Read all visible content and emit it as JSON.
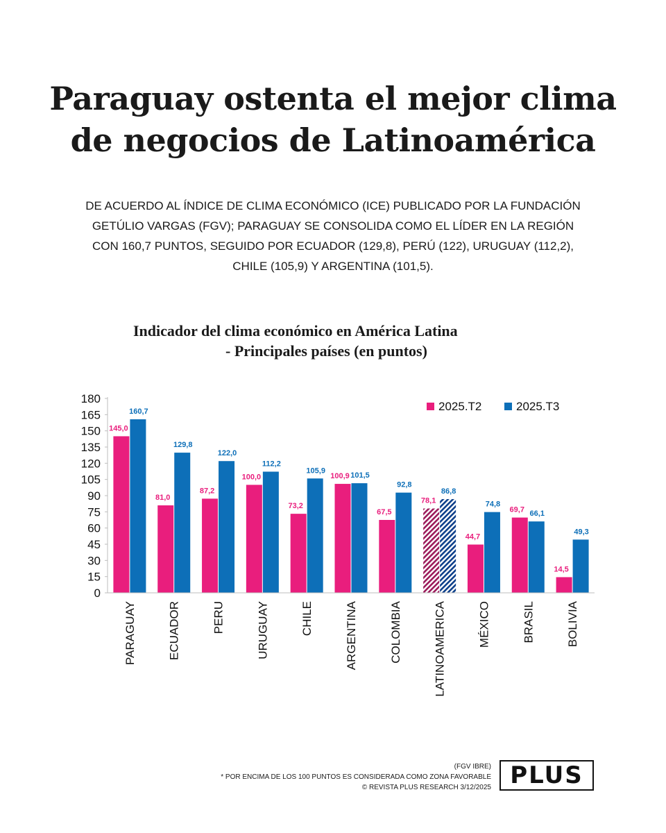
{
  "headline": {
    "line1": "Paraguay ostenta el mejor clima",
    "line2": "de negocios de Latinoamérica"
  },
  "intro": "DE ACUERDO AL ÍNDICE DE CLIMA ECONÓMICO (ICE) PUBLICADO POR LA FUNDACIÓN GETÚLIO VARGAS (FGV); PARAGUAY SE CONSOLIDA COMO EL LÍDER EN LA REGIÓN CON 160,7 PUNTOS, SEGUIDO POR ECUADOR (129,8), PERÚ (122), URUGUAY (112,2), CHILE (105,9) Y ARGENTINA (101,5).",
  "chart_data": {
    "type": "bar",
    "title_line1": "Indicador del clima económico  en América Latina",
    "title_line2": "- Principales países (en puntos)",
    "categories": [
      "PARAGUAY",
      "ECUADOR",
      "PERU",
      "URUGUAY",
      "CHILE",
      "ARGENTINA",
      "COLOMBIA",
      "LATINOAMERICA",
      "MÉXICO",
      "BRASIL",
      "BOLIVIA"
    ],
    "series": [
      {
        "name": "2025.T2",
        "color": "#e91e7d",
        "values": [
          145.0,
          81.0,
          87.2,
          100.0,
          73.2,
          100.9,
          67.5,
          78.1,
          44.7,
          69.7,
          14.5
        ],
        "labels": [
          "145,0",
          "81,0",
          "87,2",
          "100,0",
          "73,2",
          "100,9",
          "67,5",
          "78,1",
          "44,7",
          "69,7",
          "14,5"
        ]
      },
      {
        "name": "2025.T3",
        "color": "#0d6fb8",
        "values": [
          160.7,
          129.8,
          122.0,
          112.2,
          105.9,
          101.5,
          92.8,
          86.8,
          74.8,
          66.1,
          49.3
        ],
        "labels": [
          "160,7",
          "129,8",
          "122,0",
          "112,2",
          "105,9",
          "101,5",
          "92,8",
          "86,8",
          "74,8",
          "66,1",
          "49,3"
        ]
      }
    ],
    "hatched_category": "LATINOAMERICA",
    "ylim": [
      0,
      180
    ],
    "yticks": [
      "0",
      "15",
      "30",
      "45",
      "60",
      "75",
      "90",
      "105",
      "120",
      "135",
      "150",
      "165",
      "180"
    ],
    "legend_position": "top-right"
  },
  "footer": {
    "source": "(FGV IBRE)",
    "note": "* POR ENCIMA DE LOS 100 PUNTOS ES CONSIDERADA COMO ZONA FAVORABLE",
    "credit": "© REVISTA PLUS RESEARCH 3/12/2025"
  },
  "logo": {
    "text": "PLUS"
  }
}
